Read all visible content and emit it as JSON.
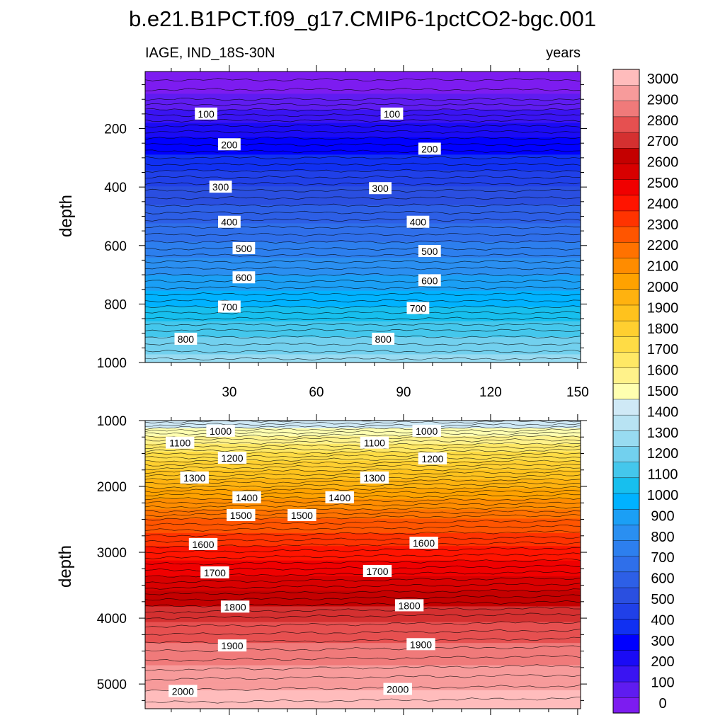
{
  "title": "b.e21.B1PCT.f09_g17.CMIP6-1pctCO2-bgc.001",
  "panel_left_label": "IAGE, IND_18S-30N",
  "panel_right_label": "years",
  "ylabel_top": "depth",
  "ylabel_bottom": "depth",
  "colors": {
    "levels": [
      "#7d1cf0",
      "#5f1cf0",
      "#3a14f2",
      "#1a0bf5",
      "#0000ff",
      "#1030f2",
      "#2040e8",
      "#2a4fe0",
      "#2d5fe6",
      "#2f6fea",
      "#2d7fee",
      "#2a8ff1",
      "#1b9ff5",
      "#00b2ff",
      "#17bfee",
      "#44c7ec",
      "#72d0ee",
      "#98dbf1",
      "#b8e3f3",
      "#cfe9f6",
      "#ffffb0",
      "#fff28a",
      "#ffe865",
      "#ffdc45",
      "#ffcf30",
      "#ffc21d",
      "#ffb20f",
      "#ffa200",
      "#ff8c00",
      "#ff7200",
      "#ff5500",
      "#ff3300",
      "#ff1400",
      "#f00000",
      "#d80000",
      "#c40000",
      "#d43030",
      "#e65050",
      "#f07a7a",
      "#f79b9b",
      "#ffbcbc"
    ]
  },
  "chart_data": [
    {
      "type": "heatmap",
      "panel": "upper",
      "variable": "IAGE",
      "region": "IND_18S-30N",
      "units": "years",
      "x_ticks": [
        30,
        60,
        90,
        120,
        150
      ],
      "xlim": [
        1,
        151
      ],
      "ylabel": "depth",
      "y_ticks": [
        200,
        400,
        600,
        800,
        1000
      ],
      "ylim": [
        5,
        1000
      ],
      "y_reversed": true,
      "profile": {
        "depth": [
          5,
          100,
          200,
          300,
          400,
          500,
          600,
          700,
          800,
          900,
          1000
        ],
        "age": [
          3,
          60,
          170,
          260,
          350,
          430,
          510,
          600,
          690,
          790,
          870
        ]
      },
      "contour_labels": [
        {
          "text": "100",
          "x": 22,
          "depth": 150
        },
        {
          "text": "100",
          "x": 86,
          "depth": 150
        },
        {
          "text": "200",
          "x": 30,
          "depth": 255
        },
        {
          "text": "200",
          "x": 99,
          "depth": 270
        },
        {
          "text": "300",
          "x": 27,
          "depth": 400
        },
        {
          "text": "300",
          "x": 82,
          "depth": 405
        },
        {
          "text": "400",
          "x": 30,
          "depth": 520
        },
        {
          "text": "400",
          "x": 95,
          "depth": 520
        },
        {
          "text": "500",
          "x": 35,
          "depth": 610
        },
        {
          "text": "500",
          "x": 99,
          "depth": 620
        },
        {
          "text": "600",
          "x": 35,
          "depth": 710
        },
        {
          "text": "600",
          "x": 99,
          "depth": 720
        },
        {
          "text": "700",
          "x": 30,
          "depth": 810
        },
        {
          "text": "700",
          "x": 95,
          "depth": 815
        },
        {
          "text": "800",
          "x": 15,
          "depth": 920
        },
        {
          "text": "800",
          "x": 83,
          "depth": 920
        }
      ]
    },
    {
      "type": "heatmap",
      "panel": "lower",
      "variable": "IAGE",
      "units": "years",
      "x_ticks": [
        30,
        60,
        90,
        120,
        150
      ],
      "xlim": [
        1,
        151
      ],
      "ylabel": "depth",
      "y_ticks": [
        1000,
        2000,
        3000,
        4000,
        5000
      ],
      "ylim": [
        1000,
        5375
      ],
      "y_reversed": true,
      "profile": {
        "depth": [
          1000,
          1300,
          1700,
          2100,
          2500,
          3000,
          3500,
          4000,
          4500,
          5000,
          5375
        ],
        "age": [
          950,
          1080,
          1230,
          1370,
          1500,
          1620,
          1730,
          1840,
          1920,
          1990,
          2030
        ]
      },
      "contour_labels": [
        {
          "text": "1000",
          "x": 27,
          "depth": 1160
        },
        {
          "text": "1000",
          "x": 98,
          "depth": 1160
        },
        {
          "text": "1100",
          "x": 13,
          "depth": 1340
        },
        {
          "text": "1100",
          "x": 80,
          "depth": 1340
        },
        {
          "text": "1200",
          "x": 31,
          "depth": 1570
        },
        {
          "text": "1200",
          "x": 100,
          "depth": 1580
        },
        {
          "text": "1300",
          "x": 18,
          "depth": 1870
        },
        {
          "text": "1300",
          "x": 80,
          "depth": 1870
        },
        {
          "text": "1400",
          "x": 36,
          "depth": 2170
        },
        {
          "text": "1400",
          "x": 68,
          "depth": 2170
        },
        {
          "text": "1500",
          "x": 34,
          "depth": 2440
        },
        {
          "text": "1500",
          "x": 55,
          "depth": 2440
        },
        {
          "text": "1600",
          "x": 21,
          "depth": 2880
        },
        {
          "text": "1600",
          "x": 97,
          "depth": 2860
        },
        {
          "text": "1700",
          "x": 25,
          "depth": 3310
        },
        {
          "text": "1700",
          "x": 81,
          "depth": 3290
        },
        {
          "text": "1800",
          "x": 32,
          "depth": 3830
        },
        {
          "text": "1800",
          "x": 92,
          "depth": 3810
        },
        {
          "text": "1900",
          "x": 31,
          "depth": 4420
        },
        {
          "text": "1900",
          "x": 96,
          "depth": 4400
        },
        {
          "text": "2000",
          "x": 14,
          "depth": 5110
        },
        {
          "text": "2000",
          "x": 88,
          "depth": 5080
        }
      ]
    }
  ],
  "colorbar": {
    "labels": [
      "0",
      "100",
      "200",
      "300",
      "400",
      "500",
      "600",
      "700",
      "800",
      "900",
      "1000",
      "1100",
      "1200",
      "1300",
      "1400",
      "1500",
      "1600",
      "1700",
      "1800",
      "1900",
      "2000",
      "2100",
      "2200",
      "2300",
      "2400",
      "2500",
      "2600",
      "2700",
      "2800",
      "2900",
      "3000"
    ]
  }
}
